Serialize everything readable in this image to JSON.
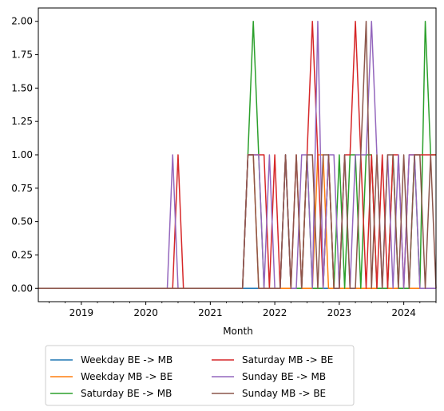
{
  "chart_data": {
    "type": "line",
    "title": "",
    "xlabel": "Month",
    "ylabel": "",
    "xlim": [
      "2018-05",
      "2024-07"
    ],
    "ylim": [
      -0.1,
      2.1
    ],
    "x_ticks": [
      "2019",
      "2020",
      "2021",
      "2022",
      "2023",
      "2024"
    ],
    "y_ticks": [
      "0.00",
      "0.25",
      "0.50",
      "0.75",
      "1.00",
      "1.25",
      "1.50",
      "1.75",
      "2.00"
    ],
    "grid": false,
    "legend_position": "below-left",
    "legend_columns": 2,
    "series": [
      {
        "name": "Weekday BE -> MB",
        "color": "#1f77b4",
        "points": [
          [
            "2018-05",
            0
          ],
          [
            "2024-07",
            0
          ]
        ]
      },
      {
        "name": "Weekday MB -> BE",
        "color": "#ff7f0e",
        "points": [
          [
            "2018-05",
            0
          ],
          [
            "2021-07",
            0
          ],
          [
            "2021-08",
            1
          ],
          [
            "2021-09",
            1
          ],
          [
            "2021-10",
            0
          ],
          [
            "2022-08",
            0
          ],
          [
            "2022-09",
            1
          ],
          [
            "2022-10",
            1
          ],
          [
            "2022-11",
            0
          ],
          [
            "2024-07",
            0
          ]
        ]
      },
      {
        "name": "Saturday BE -> MB",
        "color": "#2ca02c",
        "points": [
          [
            "2018-05",
            0
          ],
          [
            "2021-07",
            0
          ],
          [
            "2021-08",
            1
          ],
          [
            "2021-09",
            2
          ],
          [
            "2021-10",
            1
          ],
          [
            "2021-11",
            0
          ],
          [
            "2022-02",
            0
          ],
          [
            "2022-03",
            1
          ],
          [
            "2022-04",
            0
          ],
          [
            "2022-06",
            0
          ],
          [
            "2022-07",
            1
          ],
          [
            "2022-08",
            0
          ],
          [
            "2022-10",
            0
          ],
          [
            "2022-11",
            1
          ],
          [
            "2022-12",
            0
          ],
          [
            "2023-01",
            1
          ],
          [
            "2023-02",
            0
          ],
          [
            "2023-03",
            1
          ],
          [
            "2023-04",
            1
          ],
          [
            "2023-05",
            0
          ],
          [
            "2023-06",
            1
          ],
          [
            "2023-07",
            1
          ],
          [
            "2023-08",
            0
          ],
          [
            "2023-10",
            0
          ],
          [
            "2023-11",
            1
          ],
          [
            "2023-12",
            0
          ],
          [
            "2024-02",
            0
          ],
          [
            "2024-03",
            1
          ],
          [
            "2024-04",
            0
          ],
          [
            "2024-05",
            2
          ],
          [
            "2024-06",
            1
          ],
          [
            "2024-07",
            1
          ]
        ]
      },
      {
        "name": "Saturday MB -> BE",
        "color": "#d62728",
        "points": [
          [
            "2018-05",
            0
          ],
          [
            "2020-05",
            0
          ],
          [
            "2020-06",
            0
          ],
          [
            "2020-07",
            1
          ],
          [
            "2020-08",
            0
          ],
          [
            "2021-07",
            0
          ],
          [
            "2021-08",
            1
          ],
          [
            "2021-09",
            1
          ],
          [
            "2021-10",
            1
          ],
          [
            "2021-11",
            1
          ],
          [
            "2021-12",
            0
          ],
          [
            "2022-01",
            1
          ],
          [
            "2022-02",
            0
          ],
          [
            "2022-03",
            1
          ],
          [
            "2022-04",
            0
          ],
          [
            "2022-05",
            1
          ],
          [
            "2022-06",
            0
          ],
          [
            "2022-07",
            1
          ],
          [
            "2022-08",
            2
          ],
          [
            "2022-09",
            1
          ],
          [
            "2022-10",
            0
          ],
          [
            "2022-11",
            1
          ],
          [
            "2022-12",
            0
          ],
          [
            "2023-01",
            0
          ],
          [
            "2023-02",
            1
          ],
          [
            "2023-03",
            1
          ],
          [
            "2023-04",
            2
          ],
          [
            "2023-05",
            1
          ],
          [
            "2023-06",
            0
          ],
          [
            "2023-07",
            1
          ],
          [
            "2023-08",
            0
          ],
          [
            "2023-09",
            1
          ],
          [
            "2023-10",
            0
          ],
          [
            "2023-11",
            1
          ],
          [
            "2023-12",
            1
          ],
          [
            "2024-01",
            0
          ],
          [
            "2024-02",
            1
          ],
          [
            "2024-03",
            1
          ],
          [
            "2024-04",
            1
          ],
          [
            "2024-05",
            1
          ],
          [
            "2024-06",
            1
          ],
          [
            "2024-07",
            1
          ]
        ]
      },
      {
        "name": "Sunday BE -> MB",
        "color": "#9467bd",
        "points": [
          [
            "2018-05",
            0
          ],
          [
            "2020-04",
            0
          ],
          [
            "2020-05",
            0
          ],
          [
            "2020-06",
            1
          ],
          [
            "2020-07",
            0
          ],
          [
            "2021-07",
            0
          ],
          [
            "2021-08",
            1
          ],
          [
            "2021-09",
            1
          ],
          [
            "2021-10",
            1
          ],
          [
            "2021-11",
            0
          ],
          [
            "2021-12",
            1
          ],
          [
            "2022-01",
            0
          ],
          [
            "2022-02",
            0
          ],
          [
            "2022-03",
            1
          ],
          [
            "2022-04",
            0
          ],
          [
            "2022-05",
            0
          ],
          [
            "2022-06",
            1
          ],
          [
            "2022-07",
            1
          ],
          [
            "2022-08",
            0
          ],
          [
            "2022-09",
            2
          ],
          [
            "2022-10",
            0
          ],
          [
            "2022-11",
            1
          ],
          [
            "2022-12",
            1
          ],
          [
            "2023-01",
            0
          ],
          [
            "2023-02",
            1
          ],
          [
            "2023-03",
            0
          ],
          [
            "2023-04",
            1
          ],
          [
            "2023-05",
            1
          ],
          [
            "2023-06",
            1
          ],
          [
            "2023-07",
            2
          ],
          [
            "2023-08",
            1
          ],
          [
            "2023-09",
            0
          ],
          [
            "2023-10",
            1
          ],
          [
            "2023-11",
            0
          ],
          [
            "2023-12",
            1
          ],
          [
            "2024-01",
            0
          ],
          [
            "2024-02",
            1
          ],
          [
            "2024-03",
            1
          ],
          [
            "2024-04",
            0
          ],
          [
            "2024-05",
            0
          ],
          [
            "2024-06",
            0
          ],
          [
            "2024-07",
            0
          ]
        ]
      },
      {
        "name": "Sunday MB -> BE",
        "color": "#8c564b",
        "points": [
          [
            "2018-05",
            0
          ],
          [
            "2021-07",
            0
          ],
          [
            "2021-08",
            1
          ],
          [
            "2021-09",
            1
          ],
          [
            "2021-10",
            0
          ],
          [
            "2022-02",
            0
          ],
          [
            "2022-03",
            1
          ],
          [
            "2022-04",
            0
          ],
          [
            "2022-05",
            1
          ],
          [
            "2022-06",
            0
          ],
          [
            "2022-07",
            1
          ],
          [
            "2022-08",
            1
          ],
          [
            "2022-09",
            0
          ],
          [
            "2022-10",
            1
          ],
          [
            "2022-11",
            1
          ],
          [
            "2022-12",
            0
          ],
          [
            "2023-01",
            0
          ],
          [
            "2023-02",
            1
          ],
          [
            "2023-03",
            0
          ],
          [
            "2023-04",
            0
          ],
          [
            "2023-05",
            1
          ],
          [
            "2023-06",
            2
          ],
          [
            "2023-07",
            0
          ],
          [
            "2023-08",
            1
          ],
          [
            "2023-09",
            0
          ],
          [
            "2023-10",
            1
          ],
          [
            "2023-11",
            1
          ],
          [
            "2023-12",
            0
          ],
          [
            "2024-01",
            1
          ],
          [
            "2024-02",
            0
          ],
          [
            "2024-03",
            1
          ],
          [
            "2024-04",
            1
          ],
          [
            "2024-05",
            0
          ],
          [
            "2024-06",
            1
          ],
          [
            "2024-07",
            0
          ]
        ]
      }
    ]
  }
}
